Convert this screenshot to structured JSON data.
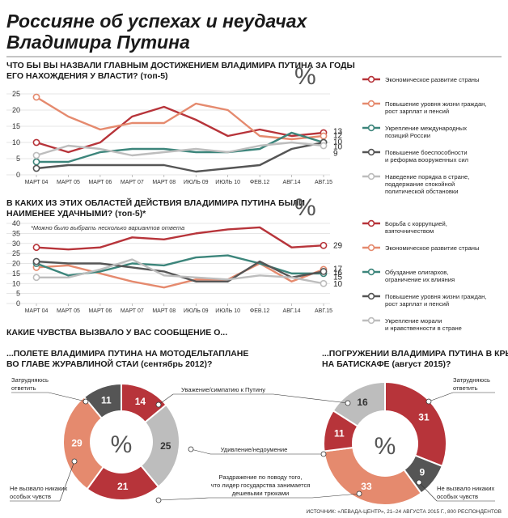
{
  "title_lines": [
    "Россияне об успехах и неудачах",
    "Владимира Путина"
  ],
  "colors": {
    "red": "#b7343a",
    "salmon": "#e58a6e",
    "teal": "#3c857b",
    "dark": "#555555",
    "light": "#bdbdbd",
    "grid": "#dddddd"
  },
  "chart_data": [
    {
      "type": "line",
      "question_lines": [
        "ЧТО БЫ ВЫ НАЗВАЛИ ГЛАВНЫМ ДОСТИЖЕНИЕМ ВЛАДИМИРА ПУТИНА ЗА ГОДЫ",
        "ЕГО НАХОЖДЕНИЯ У ВЛАСТИ? (топ-5)"
      ],
      "percent_sign": "%",
      "x": [
        "МАРТ 04",
        "МАРТ 05",
        "МАРТ 06",
        "МАРТ 07",
        "МАРТ 08",
        "ИЮЛЬ 09",
        "ИЮЛЬ 10",
        "ФЕВ.12",
        "АВГ.14",
        "АВГ.15"
      ],
      "ylim": [
        0,
        25
      ],
      "yticks": [
        0,
        5,
        10,
        15,
        20,
        25
      ],
      "grid": true,
      "legend_placement": "right",
      "series": [
        {
          "name_lines": [
            "Экономическое развитие страны"
          ],
          "color": "red",
          "values": [
            10,
            7,
            10,
            18,
            21,
            17,
            12,
            14,
            12,
            13
          ],
          "end_label": "13"
        },
        {
          "name_lines": [
            "Повышение уровня жизни граждан,",
            "рост зарплат и пенсий"
          ],
          "color": "salmon",
          "values": [
            24,
            18,
            14,
            16,
            16,
            22,
            20,
            12,
            11,
            12
          ],
          "end_label": "12"
        },
        {
          "name_lines": [
            "Укрепление международных",
            "позиций России"
          ],
          "color": "teal",
          "values": [
            4,
            4,
            7,
            8,
            8,
            7,
            7,
            8,
            13,
            10
          ],
          "end_label": "10"
        },
        {
          "name_lines": [
            "Повышение боеспособности",
            "и реформа вооруженных сил"
          ],
          "color": "dark",
          "values": [
            2,
            3,
            3,
            3,
            3,
            1,
            2,
            3,
            8,
            10
          ],
          "end_label": "10"
        },
        {
          "name_lines": [
            "Наведение порядка в стране,",
            "поддержание спокойной",
            "политической обстановки"
          ],
          "color": "light",
          "values": [
            6,
            9,
            8,
            6,
            7,
            8,
            7,
            9,
            10,
            9
          ],
          "end_label": "9"
        }
      ]
    },
    {
      "type": "line",
      "question_lines": [
        "В КАКИХ ИЗ ЭТИХ ОБЛАСТЕЙ ДЕЙСТВИЯ ВЛАДИМИРА ПУТИНА БЫЛИ",
        "НАИМЕНЕЕ УДАЧНЫМИ? (топ-5)*"
      ],
      "percent_sign": "%",
      "note": "*Можно было выбрать несколько вариантов ответа",
      "x": [
        "МАРТ 04",
        "МАРТ 05",
        "МАРТ 06",
        "МАРТ 07",
        "МАРТ 08",
        "ИЮЛЬ 09",
        "ИЮЛЬ 10",
        "ФЕВ.12",
        "АВГ.14",
        "АВГ.15"
      ],
      "ylim": [
        0,
        40
      ],
      "yticks": [
        0,
        5,
        10,
        15,
        20,
        25,
        30,
        35,
        40
      ],
      "grid": true,
      "legend_placement": "right",
      "series": [
        {
          "name_lines": [
            "Борьба с коррупцией,",
            "взяточничеством"
          ],
          "color": "red",
          "values": [
            28,
            27,
            28,
            33,
            32,
            35,
            37,
            38,
            28,
            29
          ],
          "end_label": "29"
        },
        {
          "name_lines": [
            "Экономическое развитие страны"
          ],
          "color": "salmon",
          "values": [
            18,
            19,
            15,
            11,
            8,
            12,
            12,
            20,
            11,
            17
          ],
          "end_label": "17"
        },
        {
          "name_lines": [
            "Обуздание олигархов,",
            "ограничение их влияния"
          ],
          "color": "teal",
          "values": [
            20,
            14,
            16,
            20,
            19,
            23,
            24,
            20,
            15,
            15
          ],
          "end_label": "15"
        },
        {
          "name_lines": [
            "Повышение уровня жизни граждан,",
            "рост зарплат и пенсий"
          ],
          "color": "dark",
          "values": [
            21,
            20,
            20,
            18,
            16,
            11,
            11,
            21,
            13,
            16
          ],
          "end_label": "16"
        },
        {
          "name_lines": [
            "Укрепление морали",
            "и нравственности в стране"
          ],
          "color": "light",
          "values": [
            13,
            13,
            17,
            22,
            14,
            13,
            12,
            14,
            13,
            10
          ],
          "end_label": "10"
        }
      ]
    },
    {
      "type": "pie",
      "variant": "donut",
      "title_lines": [
        "...ПОЛЕТЕ ВЛАДИМИРА ПУТИНА НА МОТОДЕЛЬТАПЛАНЕ",
        "ВО ГЛАВЕ ЖУРАВЛИНОЙ СТАИ (сентябрь 2012)?"
      ],
      "center_label": "%",
      "slices": [
        {
          "category": "Уважение/симпатию к Путину",
          "value": 14,
          "color": "red"
        },
        {
          "category": "Удивление/недоумение",
          "value": 25,
          "color": "light"
        },
        {
          "category": "Раздражение по поводу того, что лидер государства занимается дешевыми трюками",
          "value": 21,
          "color": "red"
        },
        {
          "category": "Не вызвало никаких особых чувств",
          "value": 29,
          "color": "salmon"
        },
        {
          "category": "Затрудняюсь ответить",
          "value": 11,
          "color": "dark"
        }
      ]
    },
    {
      "type": "pie",
      "variant": "donut",
      "title_lines": [
        "...ПОГРУЖЕНИИ ВЛАДИМИРА ПУТИНА В КРЫМУ",
        "НА БАТИСКАФЕ (август 2015)?"
      ],
      "center_label": "%",
      "slices": [
        {
          "category": "Уважение/симпатию к Путину",
          "value": 31,
          "color": "red"
        },
        {
          "category": "Затрудняюсь ответить",
          "value": 9,
          "color": "dark"
        },
        {
          "category": "Не вызвало никаких особых чувств",
          "value": 33,
          "color": "salmon"
        },
        {
          "category": "Раздражение по поводу того, что лидер государства занимается дешевыми трюками",
          "value": 11,
          "color": "red"
        },
        {
          "category": "Удивление/недоумение",
          "value": 16,
          "color": "light"
        }
      ]
    }
  ],
  "feelings_question": "КАКИЕ ЧУВСТВА ВЫЗВАЛО У ВАС СООБЩЕНИЕ О...",
  "callouts": {
    "difficult_left_lines": [
      "Затрудняюсь",
      "ответить"
    ],
    "respect_lines": [
      "Уважение/симпатию к Путину"
    ],
    "surprise_lines": [
      "Удивление/недоумение"
    ],
    "irritation_lines": [
      "Раздражение по поводу того,",
      "что лидер государства занимается",
      "дешевыми трюками"
    ],
    "none_left_lines": [
      "Не вызвало никаких",
      "особых чувств"
    ],
    "difficult_right_lines": [
      "Затрудняюсь",
      "ответить"
    ],
    "none_right_lines": [
      "Не вызвало никаких",
      "особых чувств"
    ]
  },
  "source": "ИСТОЧНИК: «ЛЕВАДА-ЦЕНТР», 21–24 АВГУСТА 2015 Г., 800 РЕСПОНДЕНТОВ"
}
